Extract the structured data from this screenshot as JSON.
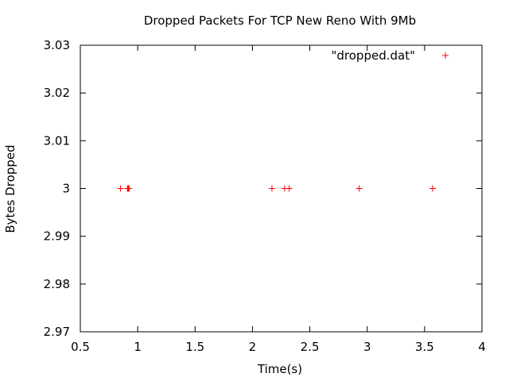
{
  "chart_data": {
    "type": "scatter",
    "title": "Dropped Packets For TCP New Reno With 9Mb",
    "xlabel": "Time(s)",
    "ylabel": "Bytes Dropped",
    "xlim": [
      0.5,
      4
    ],
    "ylim": [
      2.97,
      3.03
    ],
    "x_ticks": [
      0.5,
      1,
      1.5,
      2,
      2.5,
      3,
      3.5,
      4
    ],
    "x_tick_labels": [
      "0.5",
      "1",
      "1.5",
      "2",
      "2.5",
      "3",
      "3.5",
      "4"
    ],
    "y_ticks": [
      2.97,
      2.98,
      2.99,
      3,
      3.01,
      3.02,
      3.03
    ],
    "y_tick_labels": [
      "2.97",
      "2.98",
      "2.99",
      "3",
      "3.01",
      "3.02",
      "3.03"
    ],
    "grid": false,
    "legend_position": "top-right",
    "series": [
      {
        "name": "\"dropped.dat\"",
        "color": "#ff0000",
        "marker": "plus",
        "points": [
          {
            "x": 0.85,
            "y": 3
          },
          {
            "x": 0.91,
            "y": 3
          },
          {
            "x": 0.915,
            "y": 3
          },
          {
            "x": 0.92,
            "y": 3
          },
          {
            "x": 0.925,
            "y": 3
          },
          {
            "x": 2.17,
            "y": 3
          },
          {
            "x": 2.28,
            "y": 3
          },
          {
            "x": 2.32,
            "y": 3
          },
          {
            "x": 2.93,
            "y": 3
          },
          {
            "x": 3.57,
            "y": 3
          }
        ]
      }
    ]
  }
}
